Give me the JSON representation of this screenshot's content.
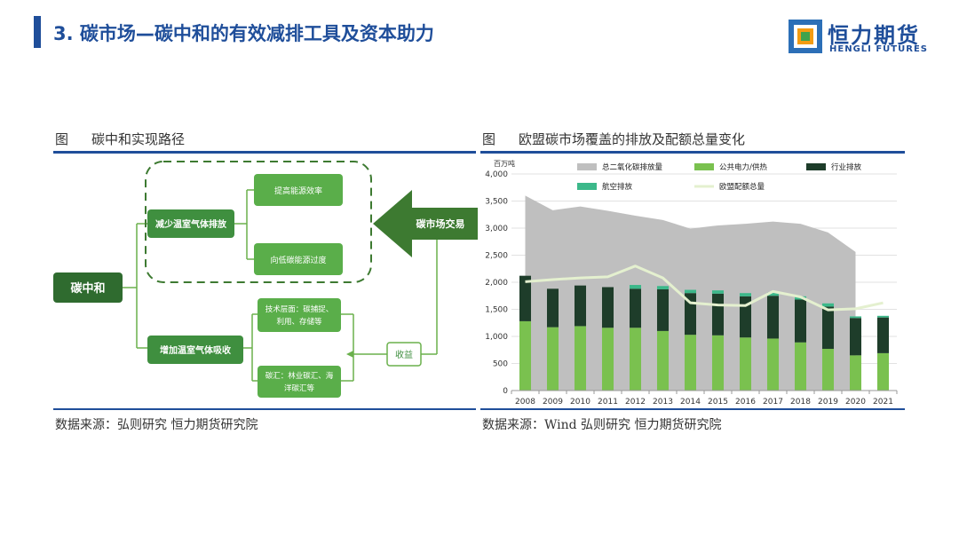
{
  "header": {
    "title": "3. 碳市场—碳中和的有效减排工具及资本助力",
    "logo_cn": "恒力期货",
    "logo_en": "HENGLI FUTURES"
  },
  "left_figure": {
    "label": "图",
    "caption": "碳中和实现路径",
    "source": "数据来源：弘则研究 恒力期货研究院",
    "nodes": {
      "root": "碳中和",
      "reduce": "减少温室气体排放",
      "efficiency": "提高能源效率",
      "low_carbon": "向低碳能源过度",
      "absorb": "增加温室气体吸收",
      "tech": "技术层面：碳捕捉、利用、存储等",
      "tech_l1": "技术层面：碳捕捉、",
      "tech_l2": "利用、存储等",
      "sink": "碳汇：林业碳汇、海洋碳汇等",
      "sink_l1": "碳汇：林业碳汇、海",
      "sink_l2": "洋碳汇等",
      "market": "碳市场交易",
      "revenue": "收益"
    },
    "colors": {
      "dark": "#2f6b2f",
      "mid": "#3f8f3f",
      "light": "#5aae4a",
      "connector": "#6ab04c",
      "arrow": "#3d7a31"
    }
  },
  "right_figure": {
    "label": "图",
    "caption": "欧盟碳市场覆盖的排放及配额总量变化",
    "source": "数据来源：Wind 弘则研究 恒力期货研究院"
  },
  "chart_data": {
    "type": "bar",
    "unit_label": "百万吨",
    "categories": [
      "2008",
      "2009",
      "2010",
      "2011",
      "2012",
      "2013",
      "2014",
      "2015",
      "2016",
      "2017",
      "2018",
      "2019",
      "2020",
      "2021"
    ],
    "ylim": [
      0,
      4000
    ],
    "yticks": [
      "0",
      "500",
      "1,000",
      "1,500",
      "2,000",
      "2,500",
      "3,000",
      "3,500",
      "4,000"
    ],
    "grid": true,
    "legend_position": "top",
    "series": [
      {
        "name": "总二氧化碳排放量",
        "type": "area",
        "color": "#bfbfbf",
        "values": [
          3600,
          3330,
          3400,
          3320,
          3230,
          3150,
          2990,
          3050,
          3080,
          3120,
          3080,
          2920,
          2560,
          null
        ]
      },
      {
        "name": "公共电力/供热",
        "type": "bar",
        "color": "#7ac14f",
        "values": [
          1280,
          1170,
          1190,
          1160,
          1160,
          1100,
          1030,
          1020,
          980,
          960,
          890,
          770,
          650,
          690
        ]
      },
      {
        "name": "行业排放",
        "type": "bar",
        "color": "#1e3d2a",
        "values": [
          840,
          710,
          750,
          750,
          720,
          770,
          770,
          770,
          760,
          790,
          790,
          780,
          690,
          660
        ]
      },
      {
        "name": "航空排放",
        "type": "bar",
        "color": "#3cb88a",
        "values": [
          0,
          0,
          0,
          0,
          70,
          60,
          60,
          60,
          60,
          60,
          60,
          60,
          30,
          30
        ]
      },
      {
        "name": "欧盟配额总量",
        "type": "line",
        "color": "#e4f0cf",
        "values": [
          2010,
          2050,
          2080,
          2100,
          2300,
          2080,
          1620,
          1580,
          1570,
          1830,
          1730,
          1490,
          1510,
          1620
        ]
      }
    ]
  }
}
